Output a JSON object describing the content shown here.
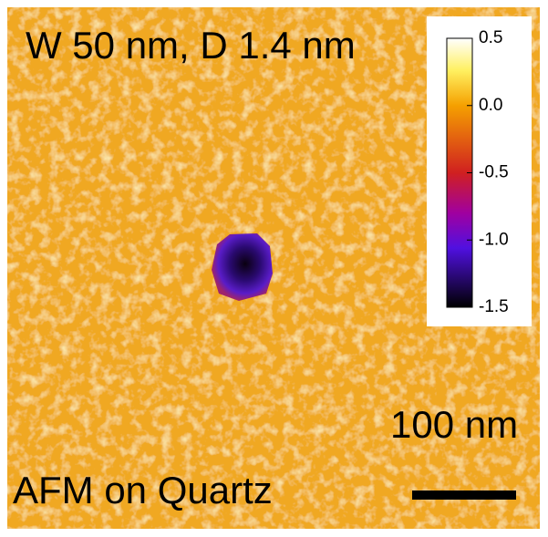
{
  "image": {
    "title": "W 50 nm, D 1.4 nm",
    "caption": "AFM on Quartz",
    "scale_bar_label": "100 nm",
    "colorbar": {
      "lim": [
        -1.5,
        0.5
      ],
      "ticks": [
        0.5,
        {
          "value": 0,
          "label": "0.0"
        },
        -0.5,
        {
          "value": -1,
          "label": "-1.0"
        },
        -1.5
      ]
    }
  }
}
